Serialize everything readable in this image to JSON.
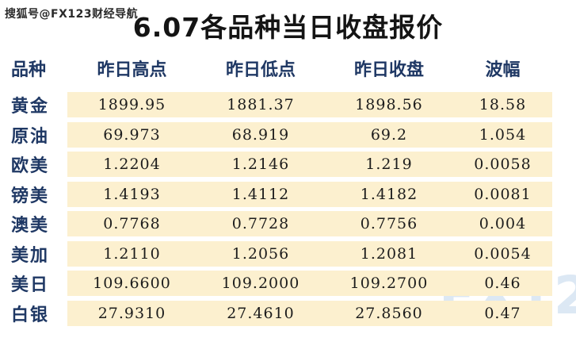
{
  "page": {
    "source_watermark": "搜狐号@FX123财经导航",
    "brand_watermark": "FX123"
  },
  "colors": {
    "accent_navy": "#1f3864",
    "cell_background": "#fcf0cf",
    "title_text": "#141414",
    "watermark_blue": "#dce8f4"
  },
  "chart_data": {
    "type": "table",
    "title": "6.07各品种当日收盘报价",
    "columns": [
      "品种",
      "昨日高点",
      "昨日低点",
      "昨日收盘",
      "波幅"
    ],
    "rows": [
      {
        "label": "黄金",
        "high": "1899.95",
        "low": "1881.37",
        "close": "1898.56",
        "range": "18.58"
      },
      {
        "label": "原油",
        "high": "69.973",
        "low": "68.919",
        "close": "69.2",
        "range": "1.054"
      },
      {
        "label": "欧美",
        "high": "1.2204",
        "low": "1.2146",
        "close": "1.219",
        "range": "0.0058"
      },
      {
        "label": "镑美",
        "high": "1.4193",
        "low": "1.4112",
        "close": "1.4182",
        "range": "0.0081"
      },
      {
        "label": "澳美",
        "high": "0.7768",
        "low": "0.7728",
        "close": "0.7756",
        "range": "0.004"
      },
      {
        "label": "美加",
        "high": "1.2110",
        "low": "1.2056",
        "close": "1.2081",
        "range": "0.0054"
      },
      {
        "label": "美日",
        "high": "109.6600",
        "low": "109.2000",
        "close": "109.2700",
        "range": "0.46"
      },
      {
        "label": "白银",
        "high": "27.9310",
        "low": "27.4610",
        "close": "27.8560",
        "range": "0.47"
      }
    ]
  }
}
